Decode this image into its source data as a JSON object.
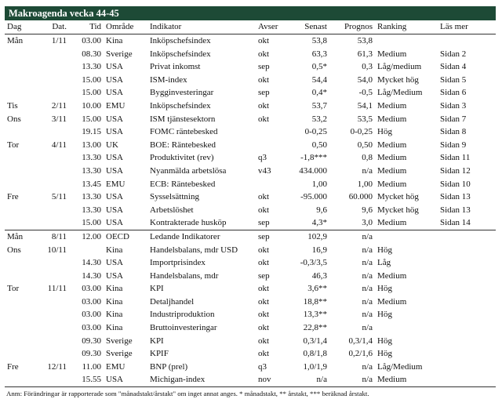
{
  "header": {
    "title": "Makroagenda vecka 44-45"
  },
  "table": {
    "columns": [
      "Dag",
      "Dat.",
      "Tid",
      "Område",
      "Indikator",
      "Avser",
      "Senast",
      "Prognos",
      "Ranking",
      "Läs mer"
    ],
    "groups": [
      {
        "rows": [
          [
            "Mån",
            "1/11",
            "03.00",
            "Kina",
            "Inköpschefsindex",
            "okt",
            "53,8",
            "53,8",
            null,
            null
          ],
          [
            null,
            null,
            "08.30",
            "Sverige",
            "Inköpschefsindex",
            "okt",
            "63,3",
            "61,3",
            "Medium",
            "Sidan 2"
          ],
          [
            null,
            null,
            "13.30",
            "USA",
            "Privat inkomst",
            "sep",
            "0,5*",
            "0,3",
            "Låg/medium",
            "Sidan 4"
          ],
          [
            null,
            null,
            "15.00",
            "USA",
            "ISM-index",
            "okt",
            "54,4",
            "54,0",
            "Mycket hög",
            "Sidan 5"
          ],
          [
            null,
            null,
            "15.00",
            "USA",
            "Bygginvesteringar",
            "sep",
            "0,4*",
            "-0,5",
            "Låg/Medium",
            "Sidan 6"
          ],
          [
            "Tis",
            "2/11",
            "10.00",
            "EMU",
            "Inköpschefsindex",
            "okt",
            "53,7",
            "54,1",
            "Medium",
            "Sidan 3"
          ],
          [
            "Ons",
            "3/11",
            "15.00",
            "USA",
            "ISM tjänstesektorn",
            "okt",
            "53,2",
            "53,5",
            "Medium",
            "Sidan 7"
          ],
          [
            null,
            null,
            "19.15",
            "USA",
            "FOMC räntebesked",
            null,
            "0-0,25",
            "0-0,25",
            "Hög",
            "Sidan 8"
          ],
          [
            "Tor",
            "4/11",
            "13.00",
            "UK",
            "BOE: Räntebesked",
            null,
            "0,50",
            "0,50",
            "Medium",
            "Sidan 9"
          ],
          [
            null,
            null,
            "13.30",
            "USA",
            "Produktivitet (rev)",
            "q3",
            "-1,8***",
            "0,8",
            "Medium",
            "Sidan 11"
          ],
          [
            null,
            null,
            "13.30",
            "USA",
            "Nyanmälda arbetslösa",
            "v43",
            "434.000",
            "n/a",
            "Medium",
            "Sidan 12"
          ],
          [
            null,
            null,
            "13.45",
            "EMU",
            "ECB: Räntebesked",
            null,
            "1,00",
            "1,00",
            "Medium",
            "Sidan 10"
          ],
          [
            "Fre",
            "5/11",
            "13.30",
            "USA",
            "Sysselsättning",
            "okt",
            "-95.000",
            "60.000",
            "Mycket hög",
            "Sidan 13"
          ],
          [
            null,
            null,
            "13.30",
            "USA",
            "Arbetslöshet",
            "okt",
            "9,6",
            "9,6",
            "Mycket hög",
            "Sidan 13"
          ],
          [
            null,
            null,
            "15.00",
            "USA",
            "Kontrakterade husköp",
            "sep",
            "4,3*",
            "3,0",
            "Medium",
            "Sidan 14"
          ]
        ]
      },
      {
        "rows": [
          [
            "Mån",
            "8/11",
            "12.00",
            "OECD",
            "Ledande Indikatorer",
            "sep",
            "102,9",
            "n/a",
            null,
            null
          ],
          [
            "Ons",
            "10/11",
            null,
            "Kina",
            "Handelsbalans, mdr USD",
            "okt",
            "16,9",
            "n/a",
            "Hög",
            null
          ],
          [
            null,
            null,
            "14.30",
            "USA",
            "Importprisindex",
            "okt",
            "-0,3/3,5",
            "n/a",
            "Låg",
            null
          ],
          [
            null,
            null,
            "14.30",
            "USA",
            "Handelsbalans, mdr",
            "sep",
            "46,3",
            "n/a",
            "Medium",
            null
          ],
          [
            "Tor",
            "11/11",
            "03.00",
            "Kina",
            "KPI",
            "okt",
            "3,6**",
            "n/a",
            "Hög",
            null
          ],
          [
            null,
            null,
            "03.00",
            "Kina",
            "Detaljhandel",
            "okt",
            "18,8**",
            "n/a",
            "Medium",
            null
          ],
          [
            null,
            null,
            "03.00",
            "Kina",
            "Industriproduktion",
            "okt",
            "13,3**",
            "n/a",
            "Hög",
            null
          ],
          [
            null,
            null,
            "03.00",
            "Kina",
            "Bruttoinvesteringar",
            "okt",
            "22,8**",
            "n/a",
            null,
            null
          ],
          [
            null,
            null,
            "09.30",
            "Sverige",
            "KPI",
            "okt",
            "0,3/1,4",
            "0,3/1,4",
            "Hög",
            null
          ],
          [
            null,
            null,
            "09.30",
            "Sverige",
            "KPIF",
            "okt",
            "0,8/1,8",
            "0,2/1,6",
            "Hög",
            null
          ],
          [
            "Fre",
            "12/11",
            "11.00",
            "EMU",
            "BNP (prel)",
            "q3",
            "1,0/1,9",
            "n/a",
            "Låg/Medium",
            null
          ],
          [
            null,
            null,
            "15.55",
            "USA",
            "Michigan-index",
            "nov",
            "n/a",
            "n/a",
            "Medium",
            null
          ]
        ]
      }
    ]
  },
  "footnote": "Anm: Förändringar är rapporterade som \"månadstakt/årstakt\" om inget annat anges. * månadstakt, ** årstakt, *** beräknad årstakt."
}
